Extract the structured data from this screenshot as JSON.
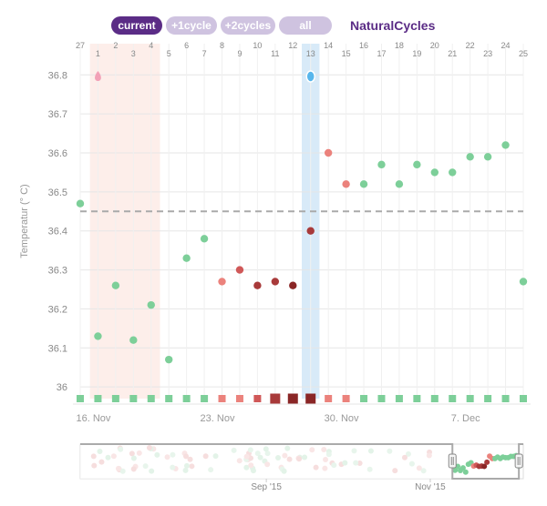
{
  "toolbar": {
    "buttons": [
      {
        "label": "current",
        "active": true
      },
      {
        "label": "+1cycle",
        "active": false
      },
      {
        "label": "+2cycles",
        "active": false
      },
      {
        "label": "all",
        "active": false
      }
    ],
    "brand": "NaturalCycles"
  },
  "colors": {
    "green": "#7dcf99",
    "pink": "#eb827c",
    "red": "#d05858",
    "dark_red": "#a83a3a",
    "darkest_red": "#8a2626",
    "period_band": "#fdeeea",
    "ovulation_band": "#d8eaf8",
    "active_button": "#5b2c86",
    "inactive_button": "#cfc3e0",
    "coverline": "#aaaaaa"
  },
  "chart_data": {
    "type": "scatter",
    "title": "",
    "ylabel": "Temperatur (° C)",
    "ylim": [
      35.97,
      36.88
    ],
    "yticks": [
      36,
      36.1,
      36.2,
      36.3,
      36.4,
      36.5,
      36.6,
      36.7,
      36.8
    ],
    "coverline": 36.45,
    "cycle_day_labels": [
      "27",
      "1",
      "2",
      "3",
      "4",
      "5",
      "6",
      "7",
      "8",
      "9",
      "10",
      "11",
      "12",
      "13",
      "14",
      "15",
      "16",
      "17",
      "18",
      "19",
      "20",
      "21",
      "22",
      "23",
      "24",
      "25"
    ],
    "date_labels": [
      {
        "day_index": 1,
        "label": "16. Nov"
      },
      {
        "day_index": 8,
        "label": "23. Nov"
      },
      {
        "day_index": 15,
        "label": "30. Nov"
      },
      {
        "day_index": 22,
        "label": "7. Dec"
      }
    ],
    "period_days": [
      1,
      4
    ],
    "ovulation_day": 13,
    "period_marker_day": 1,
    "ovulation_marker_day": 13,
    "points": [
      {
        "day": 0,
        "temp": 36.47,
        "color": "green"
      },
      {
        "day": 1,
        "temp": 36.13,
        "color": "green"
      },
      {
        "day": 2,
        "temp": 36.26,
        "color": "green"
      },
      {
        "day": 3,
        "temp": 36.12,
        "color": "green"
      },
      {
        "day": 4,
        "temp": 36.21,
        "color": "green"
      },
      {
        "day": 5,
        "temp": 36.07,
        "color": "green"
      },
      {
        "day": 6,
        "temp": 36.33,
        "color": "green"
      },
      {
        "day": 7,
        "temp": 36.38,
        "color": "green"
      },
      {
        "day": 8,
        "temp": 36.27,
        "color": "pink"
      },
      {
        "day": 9,
        "temp": 36.3,
        "color": "red"
      },
      {
        "day": 10,
        "temp": 36.26,
        "color": "dark_red"
      },
      {
        "day": 11,
        "temp": 36.27,
        "color": "dark_red"
      },
      {
        "day": 12,
        "temp": 36.26,
        "color": "darkest_red"
      },
      {
        "day": 13,
        "temp": 36.4,
        "color": "dark_red"
      },
      {
        "day": 14,
        "temp": 36.6,
        "color": "pink"
      },
      {
        "day": 15,
        "temp": 36.52,
        "color": "pink"
      },
      {
        "day": 16,
        "temp": 36.52,
        "color": "green"
      },
      {
        "day": 17,
        "temp": 36.57,
        "color": "green"
      },
      {
        "day": 18,
        "temp": 36.52,
        "color": "green"
      },
      {
        "day": 19,
        "temp": 36.57,
        "color": "green"
      },
      {
        "day": 20,
        "temp": 36.55,
        "color": "green"
      },
      {
        "day": 21,
        "temp": 36.55,
        "color": "green"
      },
      {
        "day": 22,
        "temp": 36.59,
        "color": "green"
      },
      {
        "day": 23,
        "temp": 36.59,
        "color": "green"
      },
      {
        "day": 24,
        "temp": 36.62,
        "color": "green"
      },
      {
        "day": 25,
        "temp": 36.27,
        "color": "green"
      }
    ],
    "status_squares": [
      "green",
      "green",
      "green",
      "green",
      "green",
      "green",
      "green",
      "green",
      "pink",
      "pink",
      "red",
      "dark_red",
      "darkest_red",
      "darkest_red",
      "pink",
      "pink",
      "green",
      "green",
      "green",
      "green",
      "green",
      "green",
      "green",
      "green",
      "green",
      "green"
    ],
    "navigator": {
      "labels": [
        {
          "label": "Sep '15",
          "position": 0.42
        },
        {
          "label": "Nov '15",
          "position": 0.79
        }
      ],
      "window": [
        0.84,
        0.99
      ]
    }
  }
}
